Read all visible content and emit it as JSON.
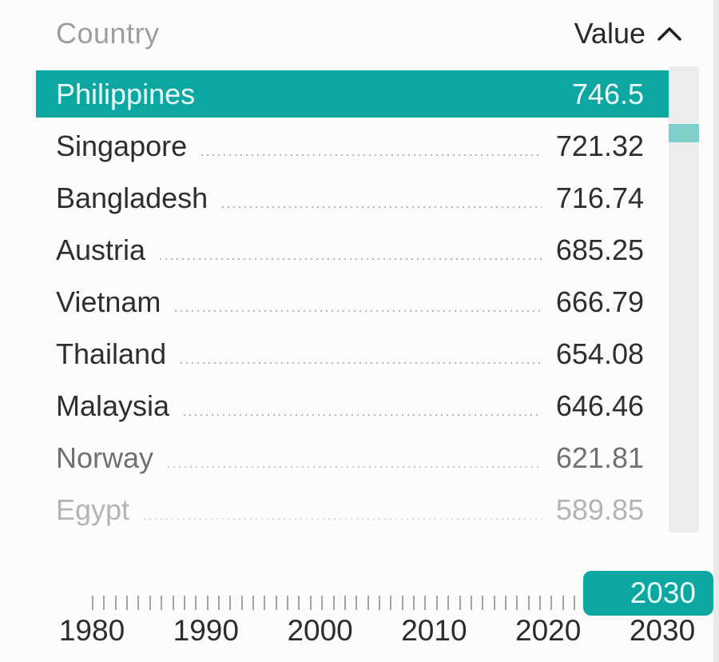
{
  "colors": {
    "accent": "#0ba7a0",
    "accent_light": "#7fd0cb"
  },
  "header": {
    "country_label": "Country",
    "value_label": "Value",
    "sort_icon": "chevron-up"
  },
  "list": {
    "rows": [
      {
        "country": "Philippines",
        "value": "746.5",
        "highlighted": true,
        "tone": "normal"
      },
      {
        "country": "Singapore",
        "value": "721.32",
        "highlighted": false,
        "tone": "normal"
      },
      {
        "country": "Bangladesh",
        "value": "716.74",
        "highlighted": false,
        "tone": "normal"
      },
      {
        "country": "Austria",
        "value": "685.25",
        "highlighted": false,
        "tone": "normal"
      },
      {
        "country": "Vietnam",
        "value": "666.79",
        "highlighted": false,
        "tone": "normal"
      },
      {
        "country": "Thailand",
        "value": "654.08",
        "highlighted": false,
        "tone": "normal"
      },
      {
        "country": "Malaysia",
        "value": "646.46",
        "highlighted": false,
        "tone": "normal"
      },
      {
        "country": "Norway",
        "value": "621.81",
        "highlighted": false,
        "tone": "dim"
      },
      {
        "country": "Egypt",
        "value": "589.85",
        "highlighted": false,
        "tone": "faint"
      }
    ]
  },
  "timeline": {
    "tick_count": 44,
    "years": [
      "1980",
      "1990",
      "2000",
      "2010",
      "2020",
      "2030"
    ],
    "current_year_label": "2030"
  },
  "chart_data": {
    "type": "table",
    "columns": [
      "Country",
      "Value"
    ],
    "rows": [
      [
        "Philippines",
        746.5
      ],
      [
        "Singapore",
        721.32
      ],
      [
        "Bangladesh",
        716.74
      ],
      [
        "Austria",
        685.25
      ],
      [
        "Vietnam",
        666.79
      ],
      [
        "Thailand",
        654.08
      ],
      [
        "Malaysia",
        646.46
      ],
      [
        "Norway",
        621.81
      ],
      [
        "Egypt",
        589.85
      ]
    ],
    "selected_row": "Philippines",
    "sort_column": "Value",
    "sort_icon": "chevron-up",
    "timeline_axis": {
      "min": 1980,
      "max": 2030,
      "tick_labels": [
        1980,
        1990,
        2000,
        2010,
        2020,
        2030
      ],
      "current": 2030
    }
  }
}
